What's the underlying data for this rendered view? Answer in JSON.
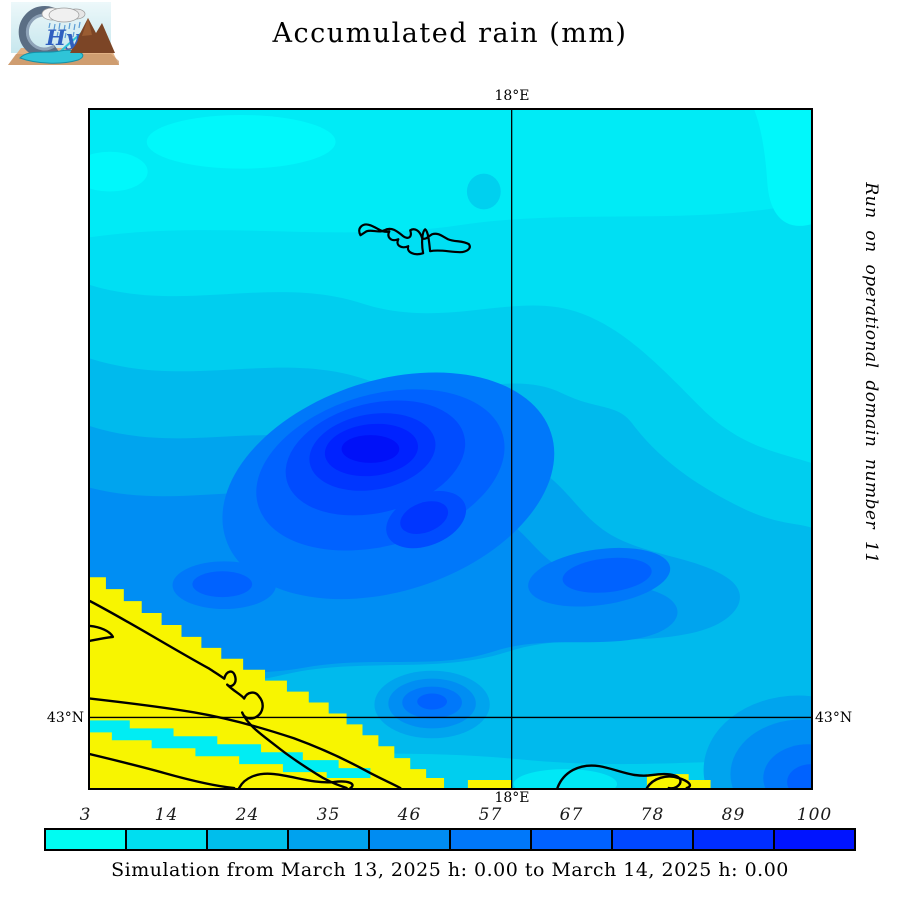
{
  "header": {
    "title": "Accumulated rain (mm)"
  },
  "logo": {
    "hy": "Hy",
    "name": "CHyM"
  },
  "axes": {
    "top": "18°E",
    "bottom": "18°E",
    "left": "43°N",
    "right": "43°N"
  },
  "side_note": "Run on operational domain number 11",
  "colorbar": {
    "values": [
      "3",
      "14",
      "24",
      "35",
      "46",
      "57",
      "67",
      "78",
      "89",
      "100"
    ],
    "colors": [
      "#00FCF2",
      "#00DEF0",
      "#00BEEC",
      "#00A2EE",
      "#008CF2",
      "#0078FA",
      "#0062FF",
      "#0048FF",
      "#002EFF",
      "#0014FF"
    ]
  },
  "caption": "Simulation from March 13, 2025 h: 0.00 to March 14, 2025 h: 0.00",
  "chart_data": {
    "type": "heatmap",
    "title": "Accumulated rain (mm)",
    "subtitle": "Simulation from March 13, 2025 h: 0.00 to March 14, 2025 h: 0.00",
    "annotation": "Run on operational domain number 11",
    "units": "mm",
    "colorbar_values": [
      3,
      14,
      24,
      35,
      46,
      57,
      67,
      78,
      89,
      100
    ],
    "colorbar_colors": [
      "#00FCF2",
      "#00DEF0",
      "#00BEEC",
      "#00A2EE",
      "#008CF2",
      "#0078FA",
      "#0062FF",
      "#0048FF",
      "#002EFF",
      "#0014FF"
    ],
    "x_ticks": [
      "18°E"
    ],
    "y_ticks": [
      "43°N"
    ],
    "field_description": "Contour-filled rain accumulation over a sea domain; lightest cyan (~3-14 mm) across the north and northeast, deepening southwest-center to a dark blue maximum (~90-100 mm) just west of the 18E meridian; secondary blue maxima toward south-center and southeast corner; yellow land mask with black coastlines in the southwest corner near 43N; small island outline drawn in the north at about 18E",
    "land_color": "#F8F500",
    "grid": [
      "18°E meridian line",
      "43°N parallel line"
    ]
  }
}
